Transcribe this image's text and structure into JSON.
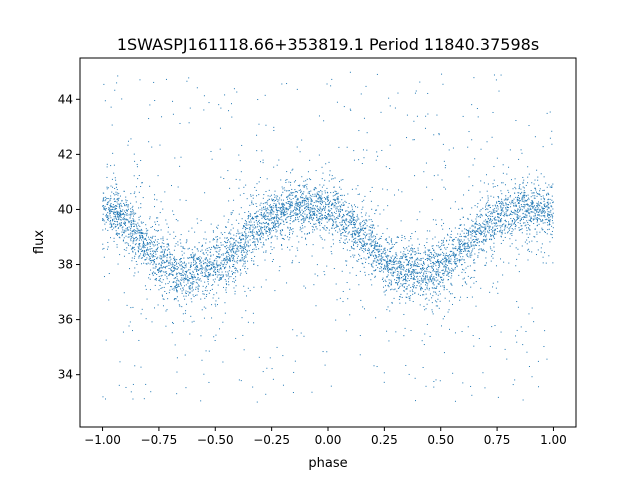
{
  "chart_data": {
    "type": "scatter",
    "title": "1SWASPJ161118.66+353819.1 Period 11840.37598s",
    "xlabel": "phase",
    "ylabel": "flux",
    "xlim": [
      -1.1,
      1.1
    ],
    "ylim": [
      32.1,
      45.5
    ],
    "xticks": [
      -1.0,
      -0.75,
      -0.5,
      -0.25,
      0.0,
      0.25,
      0.5,
      0.75,
      1.0
    ],
    "xtick_labels": [
      "−1.00",
      "−0.75",
      "−0.50",
      "−0.25",
      "0.00",
      "0.25",
      "0.50",
      "0.75",
      "1.00"
    ],
    "yticks": [
      34,
      36,
      38,
      40,
      42,
      44
    ],
    "ytick_labels": [
      "34",
      "36",
      "38",
      "40",
      "42",
      "44"
    ],
    "grid": false,
    "legend": "none",
    "marker_color": "#1f77b4",
    "series": [
      {
        "phase": [
          -1.0,
          -0.95,
          -0.9,
          -0.85,
          -0.8,
          -0.75,
          -0.7,
          -0.65,
          -0.6,
          -0.55,
          -0.5,
          -0.45,
          -0.4,
          -0.35,
          -0.3,
          -0.25,
          -0.2,
          -0.15,
          -0.1,
          -0.05,
          0.0,
          0.05,
          0.1,
          0.15,
          0.2,
          0.25,
          0.3,
          0.35,
          0.4,
          0.45,
          0.5,
          0.55,
          0.6,
          0.65,
          0.7,
          0.75,
          0.8,
          0.85,
          0.9,
          0.95,
          1.0
        ],
        "flux_center": [
          40.0,
          39.9,
          39.6,
          39.1,
          38.6,
          38.2,
          37.9,
          37.8,
          37.8,
          37.8,
          37.9,
          38.2,
          38.6,
          39.0,
          39.4,
          39.7,
          39.9,
          40.1,
          40.1,
          40.1,
          40.0,
          39.8,
          39.4,
          39.0,
          38.6,
          38.2,
          37.9,
          37.8,
          37.8,
          37.8,
          37.9,
          38.2,
          38.6,
          39.0,
          39.4,
          39.7,
          39.9,
          40.0,
          40.0,
          40.0,
          40.0
        ]
      }
    ]
  }
}
